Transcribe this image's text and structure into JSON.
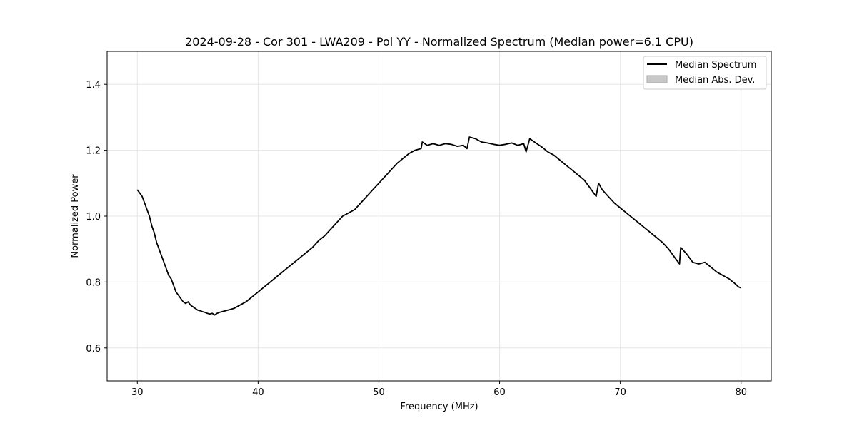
{
  "chart_data": {
    "type": "line",
    "title": "2024-09-28 - Cor 301 - LWA209 - Pol YY - Normalized Spectrum (Median power=6.1 CPU)",
    "xlabel": "Frequency (MHz)",
    "ylabel": "Normalized Power",
    "xlim": [
      27.5,
      82.5
    ],
    "ylim": [
      0.5,
      1.5
    ],
    "xticks": [
      30,
      40,
      50,
      60,
      70,
      80
    ],
    "yticks": [
      0.6,
      0.8,
      1.0,
      1.2,
      1.4
    ],
    "xtick_labels": [
      "30",
      "40",
      "50",
      "60",
      "70",
      "80"
    ],
    "ytick_labels": [
      "0.6",
      "0.8",
      "1.0",
      "1.2",
      "1.4"
    ],
    "grid": true,
    "legend_position": "top-right",
    "legend": [
      {
        "label": "Median Spectrum",
        "kind": "line",
        "color": "#000000"
      },
      {
        "label": "Median Abs. Dev.",
        "kind": "patch",
        "color": "#c8c8c8"
      }
    ],
    "series": [
      {
        "name": "Median Spectrum",
        "color": "#000000",
        "x": [
          30.0,
          30.2,
          30.4,
          30.6,
          30.8,
          31.0,
          31.2,
          31.4,
          31.6,
          31.8,
          32.0,
          32.2,
          32.4,
          32.6,
          32.8,
          33.0,
          33.2,
          33.4,
          33.6,
          33.8,
          34.0,
          34.2,
          34.4,
          34.6,
          34.8,
          35.0,
          35.2,
          35.4,
          35.6,
          35.8,
          36.0,
          36.2,
          36.4,
          36.6,
          36.8,
          37.0,
          37.5,
          38.0,
          38.5,
          39.0,
          39.5,
          40.0,
          40.5,
          41.0,
          41.5,
          42.0,
          42.5,
          43.0,
          43.5,
          44.0,
          44.5,
          45.0,
          45.5,
          46.0,
          46.5,
          47.0,
          47.5,
          48.0,
          48.5,
          49.0,
          49.5,
          50.0,
          50.5,
          51.0,
          51.5,
          52.0,
          52.5,
          53.0,
          53.5,
          53.6,
          54.0,
          54.5,
          55.0,
          55.5,
          56.0,
          56.5,
          57.0,
          57.3,
          57.5,
          58.0,
          58.5,
          59.0,
          59.5,
          60.0,
          60.5,
          61.0,
          61.5,
          62.0,
          62.2,
          62.5,
          63.0,
          63.5,
          64.0,
          64.5,
          65.0,
          65.5,
          66.0,
          66.5,
          67.0,
          67.5,
          68.0,
          68.2,
          68.5,
          69.0,
          69.5,
          70.0,
          70.5,
          71.0,
          71.5,
          72.0,
          72.5,
          73.0,
          73.5,
          74.0,
          74.5,
          74.9,
          75.0,
          75.5,
          76.0,
          76.5,
          77.0,
          77.5,
          78.0,
          78.5,
          79.0,
          79.5,
          79.8,
          80.0
        ],
        "y": [
          1.08,
          1.07,
          1.06,
          1.04,
          1.02,
          1.0,
          0.97,
          0.95,
          0.92,
          0.9,
          0.88,
          0.86,
          0.84,
          0.82,
          0.81,
          0.79,
          0.77,
          0.76,
          0.75,
          0.74,
          0.735,
          0.74,
          0.73,
          0.725,
          0.72,
          0.715,
          0.713,
          0.71,
          0.708,
          0.705,
          0.703,
          0.705,
          0.7,
          0.705,
          0.708,
          0.71,
          0.715,
          0.72,
          0.73,
          0.74,
          0.755,
          0.77,
          0.785,
          0.8,
          0.815,
          0.83,
          0.845,
          0.86,
          0.875,
          0.89,
          0.905,
          0.925,
          0.94,
          0.96,
          0.98,
          1.0,
          1.01,
          1.02,
          1.04,
          1.06,
          1.08,
          1.1,
          1.12,
          1.14,
          1.16,
          1.175,
          1.19,
          1.2,
          1.205,
          1.225,
          1.215,
          1.22,
          1.215,
          1.22,
          1.218,
          1.212,
          1.215,
          1.205,
          1.24,
          1.235,
          1.225,
          1.222,
          1.218,
          1.215,
          1.218,
          1.222,
          1.215,
          1.22,
          1.195,
          1.235,
          1.222,
          1.21,
          1.195,
          1.185,
          1.17,
          1.155,
          1.14,
          1.125,
          1.11,
          1.085,
          1.06,
          1.1,
          1.08,
          1.06,
          1.04,
          1.025,
          1.01,
          0.995,
          0.98,
          0.965,
          0.95,
          0.935,
          0.92,
          0.9,
          0.875,
          0.855,
          0.905,
          0.885,
          0.86,
          0.855,
          0.86,
          0.845,
          0.83,
          0.82,
          0.81,
          0.795,
          0.785,
          0.782
        ]
      }
    ]
  }
}
